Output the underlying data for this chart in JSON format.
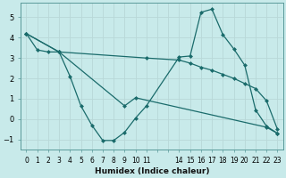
{
  "xlabel": "Humidex (Indice chaleur)",
  "background_color": "#c8eaea",
  "grid_color": "#c0d8d8",
  "line_color": "#1a6b6b",
  "xlim": [
    -0.5,
    23.5
  ],
  "ylim": [
    -1.5,
    5.7
  ],
  "yticks": [
    -1,
    0,
    1,
    2,
    3,
    4,
    5
  ],
  "xtick_positions": [
    0,
    1,
    2,
    3,
    4,
    5,
    6,
    7,
    8,
    9,
    10,
    11,
    12,
    13,
    14,
    15,
    16,
    17,
    18,
    19,
    20,
    21,
    22,
    23
  ],
  "xtick_labels": [
    "0",
    "1",
    "2",
    "3",
    "4",
    "5",
    "6",
    "7",
    "8",
    "9",
    "10",
    "11",
    "",
    "",
    "14",
    "15",
    "16",
    "17",
    "18",
    "19",
    "20",
    "21",
    "22",
    "23"
  ],
  "curve1_x": [
    0,
    1,
    2,
    3,
    11,
    14,
    15,
    16,
    17,
    18,
    19,
    20,
    21,
    22,
    23
  ],
  "curve1_y": [
    4.2,
    3.4,
    3.3,
    3.3,
    3.0,
    2.9,
    2.75,
    2.55,
    2.4,
    2.2,
    2.0,
    1.75,
    1.5,
    0.9,
    -0.5
  ],
  "curve2_x": [
    0,
    3,
    4,
    5,
    6,
    7,
    8,
    9,
    10,
    11,
    14,
    15,
    16,
    17,
    18,
    19,
    20,
    21,
    22,
    23
  ],
  "curve2_y": [
    4.2,
    3.3,
    2.1,
    0.65,
    -0.3,
    -1.05,
    -1.05,
    -0.65,
    0.05,
    0.65,
    3.05,
    3.1,
    5.25,
    5.4,
    4.15,
    3.45,
    2.65,
    0.45,
    -0.35,
    -0.7
  ],
  "curve3_x": [
    0,
    3,
    9,
    10,
    22,
    23
  ],
  "curve3_y": [
    4.2,
    3.3,
    0.65,
    1.05,
    -0.4,
    -0.7
  ]
}
